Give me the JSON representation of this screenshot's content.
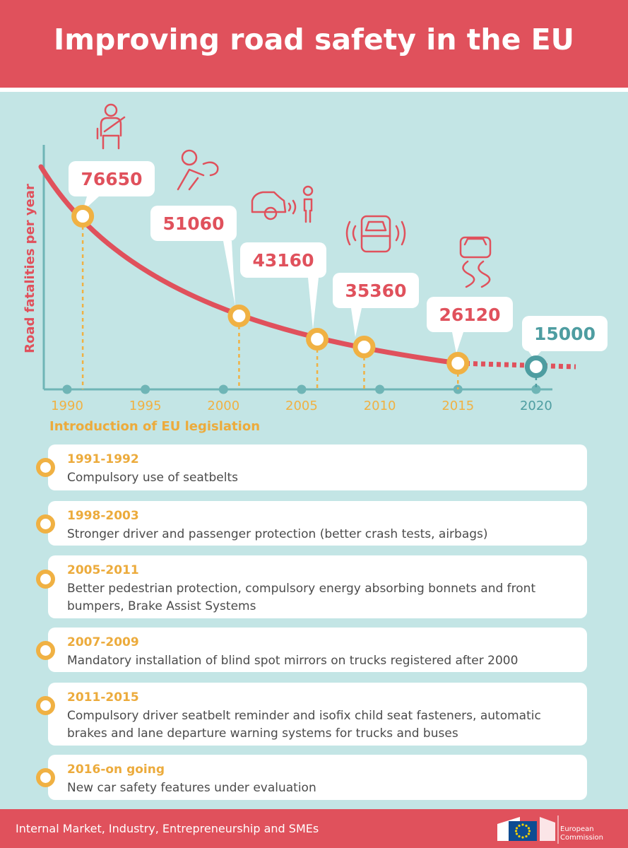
{
  "title": "Improving road safety in the EU",
  "colors": {
    "header": "#e0515c",
    "background": "#c3e5e5",
    "curve": "#e0515c",
    "marker": "#f0b143",
    "target": "#4e9da1",
    "axis": "#6fb5b6"
  },
  "chart_data": {
    "type": "line",
    "title": "Improving road safety in the EU",
    "ylabel": "Road fatalities per year",
    "xlabel": "Introduction of EU legislation",
    "x_ticks": [
      "1990",
      "1995",
      "2000",
      "2005",
      "2010",
      "2015",
      "2020"
    ],
    "xlim": [
      1988,
      2022
    ],
    "points": [
      {
        "year": 1991,
        "value": 76650,
        "label": "76650"
      },
      {
        "year": 2001,
        "value": 51060,
        "label": "51060"
      },
      {
        "year": 2006,
        "value": 43160,
        "label": "43160"
      },
      {
        "year": 2009,
        "value": 35360,
        "label": "35360"
      },
      {
        "year": 2015,
        "value": 26120,
        "label": "26120"
      }
    ],
    "target": {
      "year": 2020,
      "value": 15000,
      "label": "15000"
    },
    "icons": [
      "seatbelt-icon",
      "airbag-icon",
      "pedestrian-protection-icon",
      "car-sensor-icon",
      "skidding-car-icon"
    ]
  },
  "timeline": [
    {
      "period": "1991-1992",
      "text": "Compulsory use of seatbelts"
    },
    {
      "period": "1998-2003",
      "text": "Stronger driver and passenger protection (better crash tests, airbags)"
    },
    {
      "period": "2005-2011",
      "text": "Better pedestrian protection, compulsory energy absorbing bonnets and front bumpers, Brake Assist Systems"
    },
    {
      "period": "2007-2009",
      "text": "Mandatory installation of blind spot mirrors on trucks registered after 2000"
    },
    {
      "period": "2011-2015",
      "text": "Compulsory driver seatbelt reminder and isofix child seat fasteners, automatic brakes and lane departure warning systems for trucks and buses"
    },
    {
      "period": "2016-on going",
      "text": "New car safety features under evaluation"
    }
  ],
  "footer": {
    "text": "Internal Market, Industry, Entrepreneurship and SMEs",
    "logo_line1": "European",
    "logo_line2": "Commission"
  }
}
